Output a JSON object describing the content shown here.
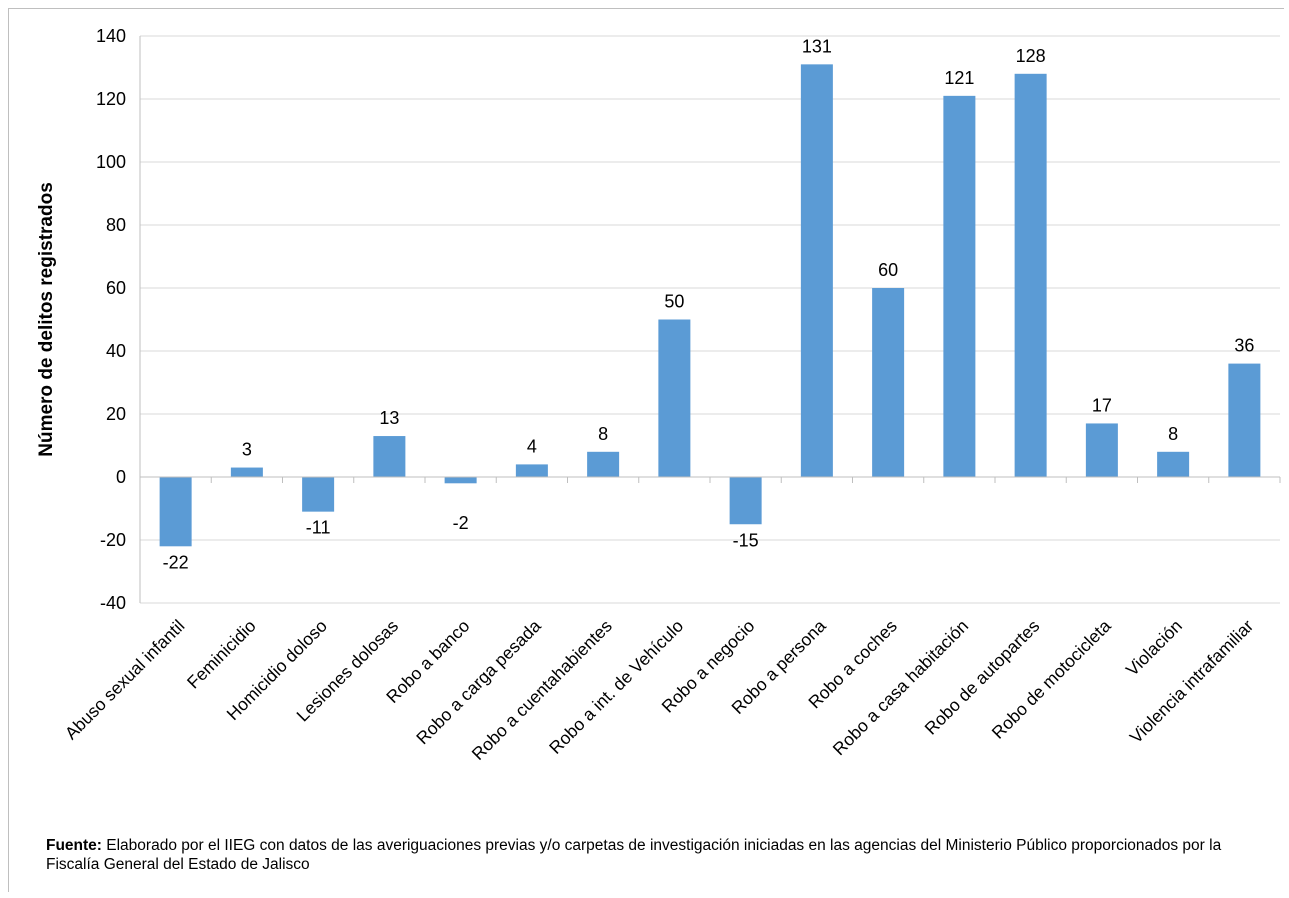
{
  "chart_data": {
    "type": "bar",
    "ylabel": "Número de delitos registrados",
    "ylim": [
      -40,
      140
    ],
    "yticks": [
      -40,
      -20,
      0,
      20,
      40,
      60,
      80,
      100,
      120,
      140
    ],
    "grid": true,
    "color": "#5b9bd5",
    "categories": [
      "Abuso sexual infantil",
      "Feminicidio",
      "Homicidio doloso",
      "Lesiones dolosas",
      "Robo a banco",
      "Robo a carga pesada",
      "Robo a cuentahabientes",
      "Robo a int. de Vehículo",
      "Robo a negocio",
      "Robo a persona",
      "Robo a coches",
      "Robo a casa habitación",
      "Robo de autopartes",
      "Robo de motocicleta",
      "Violación",
      "Violencia intrafamiliar"
    ],
    "values": [
      -22,
      3,
      -11,
      13,
      -2,
      4,
      8,
      50,
      -15,
      131,
      60,
      121,
      128,
      17,
      8,
      36
    ]
  },
  "source": {
    "label": "Fuente:",
    "text": " Elaborado por el IIEG con datos de las averiguaciones previas y/o carpetas de investigación iniciadas en las agencias del Ministerio Público proporcionados por la Fiscalía General del Estado de Jalisco"
  }
}
